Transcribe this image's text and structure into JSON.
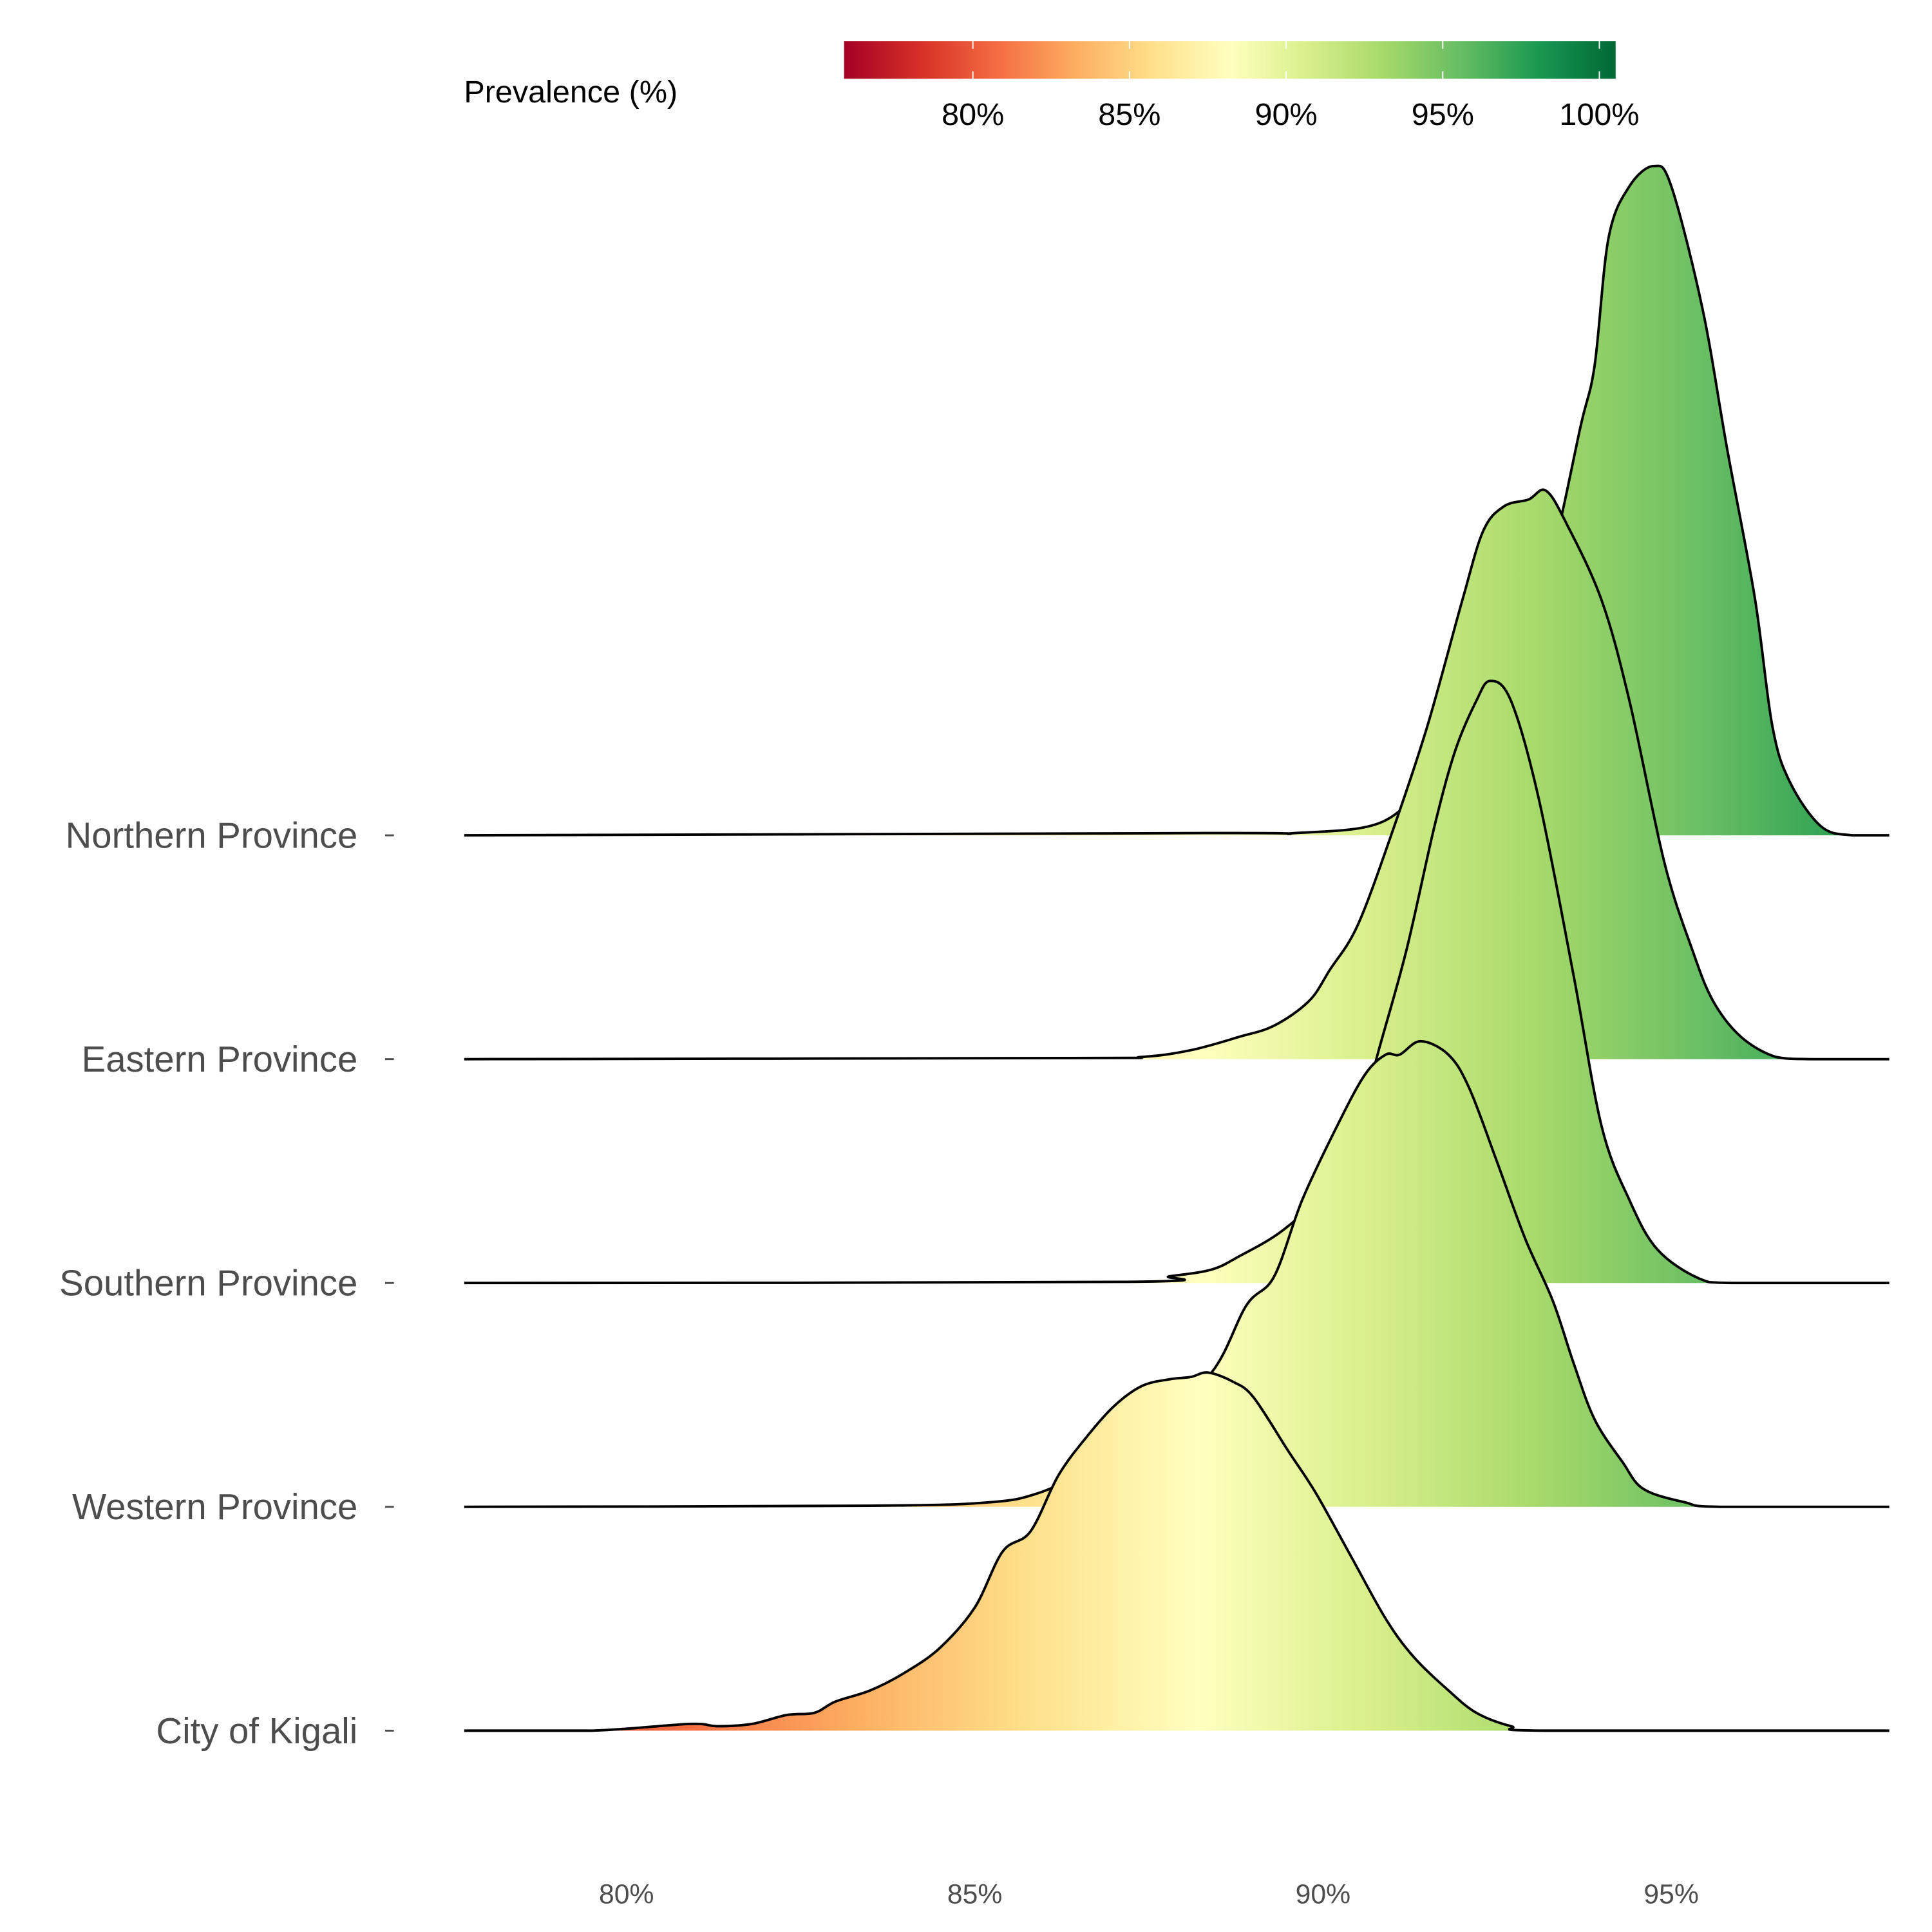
{
  "chart_data": {
    "type": "ridgeline-density",
    "title": "",
    "xlabel": "",
    "ylabel": "",
    "xlim": [
      77.67,
      98.13
    ],
    "x_ticks": [
      80,
      85,
      90,
      95
    ],
    "x_tick_labels": [
      "80%",
      "85%",
      "90%",
      "95%"
    ],
    "ridge_height_units": "density scaled relative to row spacing",
    "legend": {
      "title": "Prevalence (%)",
      "placement": "top",
      "range": [
        75.9,
        100.5
      ],
      "ticks": [
        80,
        85,
        90,
        95,
        100
      ],
      "tick_labels": [
        "80%",
        "85%",
        "90%",
        "95%",
        "100%"
      ],
      "palette": [
        "#a50026",
        "#d73027",
        "#f46d43",
        "#fdae61",
        "#fee08b",
        "#ffffbf",
        "#d9ef8b",
        "#a6d96a",
        "#66bd63",
        "#1a9850",
        "#006837"
      ]
    },
    "series": [
      {
        "name": "Northern Province",
        "row": 4,
        "x": [
          77.67,
          88.3,
          89.6,
          90.85,
          91.5,
          92,
          92.5,
          93,
          93.3,
          93.7,
          93.9,
          94.1,
          94.4,
          94.75,
          95.0,
          95.45,
          95.8,
          96.2,
          96.45,
          96.7,
          97.15,
          97.6,
          98.13
        ],
        "density": [
          0,
          0.01,
          0.01,
          0.06,
          0.27,
          0.6,
          0.83,
          1.1,
          1.27,
          1.83,
          2.1,
          2.67,
          2.9,
          2.99,
          2.9,
          2.35,
          1.73,
          1.06,
          0.49,
          0.24,
          0.04,
          0,
          0
        ]
      },
      {
        "name": "Eastern Province",
        "row": 3,
        "x": [
          77.67,
          86.4,
          87.4,
          88.1,
          88.8,
          89.3,
          89.8,
          90.1,
          90.5,
          91.0,
          91.5,
          92.0,
          92.3,
          92.6,
          92.95,
          93.2,
          93.5,
          94.0,
          94.4,
          94.9,
          95.3,
          95.6,
          96.0,
          96.5,
          97,
          98.13
        ],
        "density": [
          0,
          0.005,
          0.01,
          0.04,
          0.1,
          0.15,
          0.26,
          0.4,
          0.6,
          1.02,
          1.49,
          2.05,
          2.36,
          2.47,
          2.5,
          2.54,
          2.39,
          2.05,
          1.6,
          0.88,
          0.49,
          0.26,
          0.1,
          0.01,
          0,
          0
        ]
      },
      {
        "name": "Southern Province",
        "row": 2,
        "x": [
          77.67,
          87.1,
          87.8,
          88.4,
          88.8,
          89.4,
          90.0,
          90.4,
          90.8,
          91.2,
          91.6,
          91.9,
          92.2,
          92.4,
          92.7,
          93.1,
          93.6,
          94.0,
          94.4,
          94.8,
          95.4,
          95.9,
          98.13
        ],
        "density": [
          0,
          0.005,
          0.03,
          0.06,
          0.12,
          0.23,
          0.4,
          0.59,
          1.04,
          1.49,
          2.04,
          2.38,
          2.6,
          2.69,
          2.6,
          2.16,
          1.37,
          0.7,
          0.37,
          0.15,
          0.02,
          0,
          0
        ]
      },
      {
        "name": "Western Province",
        "row": 1,
        "x": [
          77.67,
          83.5,
          85.2,
          85.9,
          86.5,
          87.5,
          88.4,
          88.9,
          89.3,
          89.7,
          90.2,
          90.6,
          90.9,
          91.1,
          91.4,
          91.8,
          92.1,
          92.5,
          92.9,
          93.3,
          93.6,
          93.9,
          94.3,
          94.6,
          95.2,
          95.7,
          98.13
        ],
        "density": [
          0,
          0.005,
          0.02,
          0.06,
          0.15,
          0.35,
          0.6,
          0.9,
          1.03,
          1.37,
          1.7,
          1.93,
          2.02,
          2.02,
          2.08,
          2.02,
          1.87,
          1.54,
          1.2,
          0.92,
          0.64,
          0.39,
          0.2,
          0.08,
          0.02,
          0,
          0
        ]
      },
      {
        "name": "City of Kigali",
        "row": 0,
        "x": [
          77.67,
          79.5,
          80.9,
          81.3,
          81.8,
          82.3,
          82.7,
          83.0,
          83.5,
          84.0,
          84.5,
          85.0,
          85.4,
          85.8,
          86.2,
          86.6,
          87.0,
          87.4,
          87.8,
          88.1,
          88.35,
          88.7,
          89.0,
          89.5,
          89.9,
          90.4,
          90.9,
          91.3,
          91.8,
          92.2,
          92.7,
          93.2,
          98.13
        ],
        "density": [
          0,
          0,
          0.03,
          0.02,
          0.03,
          0.07,
          0.08,
          0.13,
          0.18,
          0.26,
          0.37,
          0.55,
          0.8,
          0.89,
          1.14,
          1.31,
          1.45,
          1.54,
          1.57,
          1.58,
          1.6,
          1.56,
          1.49,
          1.25,
          1.06,
          0.78,
          0.5,
          0.33,
          0.18,
          0.08,
          0.02,
          0,
          0
        ]
      }
    ]
  }
}
